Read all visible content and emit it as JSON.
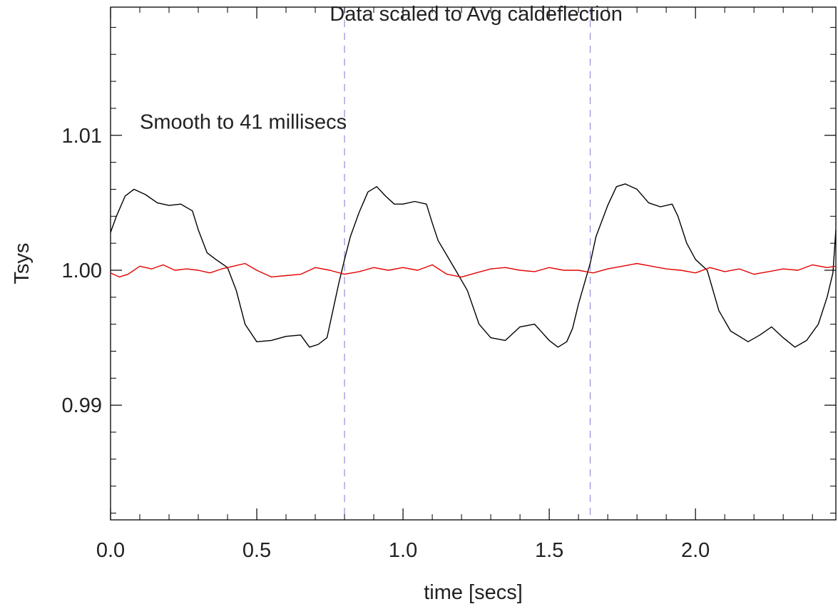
{
  "chart_data": {
    "type": "line",
    "title": "",
    "xlabel": "time [secs]",
    "ylabel": "Tsys",
    "xlim": [
      0.0,
      2.48
    ],
    "ylim": [
      0.9815,
      1.0195
    ],
    "x_ticks": [
      0.0,
      0.5,
      1.0,
      1.5,
      2.0
    ],
    "x_tick_labels": [
      "0.0",
      "0.5",
      "1.0",
      "1.5",
      "2.0"
    ],
    "y_ticks": [
      0.99,
      1.0,
      1.01
    ],
    "y_tick_labels": [
      "0.99",
      "1.00",
      "1.01"
    ],
    "grid": false,
    "annotations": [
      {
        "text": "Data scaled to Avg caldeflection",
        "x": 1.25,
        "y": 1.0185
      },
      {
        "text": "Smooth to 41 millisecs",
        "x": 0.1,
        "y": 1.0105
      }
    ],
    "vertical_lines": [
      {
        "x": 0.8,
        "color": "#9a8ad8",
        "style": "dashed"
      },
      {
        "x": 1.64,
        "color": "#9a8ad8",
        "style": "dashed"
      }
    ],
    "series": [
      {
        "color": "#000000",
        "x": [
          0.0,
          0.02,
          0.05,
          0.08,
          0.12,
          0.16,
          0.2,
          0.24,
          0.28,
          0.3,
          0.33,
          0.36,
          0.4,
          0.43,
          0.46,
          0.5,
          0.55,
          0.6,
          0.65,
          0.68,
          0.71,
          0.74,
          0.76,
          0.78,
          0.8,
          0.82,
          0.85,
          0.88,
          0.91,
          0.94,
          0.97,
          1.0,
          1.04,
          1.08,
          1.1,
          1.12,
          1.15,
          1.18,
          1.22,
          1.26,
          1.3,
          1.35,
          1.4,
          1.45,
          1.5,
          1.53,
          1.56,
          1.58,
          1.6,
          1.62,
          1.64,
          1.66,
          1.7,
          1.73,
          1.76,
          1.8,
          1.84,
          1.88,
          1.92,
          1.94,
          1.97,
          2.0,
          2.04,
          2.08,
          2.12,
          2.18,
          2.22,
          2.26,
          2.3,
          2.34,
          2.38,
          2.42,
          2.45,
          2.47,
          2.48
        ],
        "y": [
          1.0028,
          1.004,
          1.0055,
          1.006,
          1.0056,
          1.005,
          1.0048,
          1.0049,
          1.0044,
          1.003,
          1.0013,
          1.0008,
          1.0002,
          0.9985,
          0.996,
          0.9947,
          0.9948,
          0.9951,
          0.9952,
          0.9943,
          0.9945,
          0.995,
          0.997,
          0.999,
          1.0008,
          1.0025,
          1.0043,
          1.0058,
          1.0062,
          1.0055,
          1.0049,
          1.0049,
          1.0051,
          1.0049,
          1.0035,
          1.0022,
          1.0011,
          1.0,
          0.9985,
          0.996,
          0.995,
          0.9948,
          0.9958,
          0.996,
          0.9948,
          0.9943,
          0.9947,
          0.9957,
          0.9975,
          0.999,
          1.0005,
          1.0025,
          1.0048,
          1.0062,
          1.0064,
          1.006,
          1.005,
          1.0047,
          1.0049,
          1.004,
          1.002,
          1.0008,
          1.0,
          0.997,
          0.9955,
          0.9947,
          0.9952,
          0.9958,
          0.995,
          0.9943,
          0.9948,
          0.996,
          0.998,
          0.9998,
          1.003
        ]
      },
      {
        "color": "#e30000",
        "x": [
          0.0,
          0.03,
          0.06,
          0.1,
          0.14,
          0.18,
          0.22,
          0.26,
          0.3,
          0.34,
          0.38,
          0.42,
          0.46,
          0.5,
          0.55,
          0.6,
          0.65,
          0.7,
          0.75,
          0.8,
          0.85,
          0.9,
          0.95,
          1.0,
          1.05,
          1.1,
          1.15,
          1.2,
          1.25,
          1.3,
          1.35,
          1.4,
          1.45,
          1.5,
          1.55,
          1.6,
          1.65,
          1.7,
          1.75,
          1.8,
          1.85,
          1.9,
          1.95,
          2.0,
          2.05,
          2.1,
          2.15,
          2.2,
          2.25,
          2.3,
          2.35,
          2.4,
          2.45,
          2.48
        ],
        "y": [
          0.9998,
          0.9995,
          0.9997,
          1.0003,
          1.0001,
          1.0004,
          1.0,
          1.0001,
          1.0,
          0.9998,
          1.0001,
          1.0003,
          1.0005,
          1.0,
          0.9995,
          0.9996,
          0.9997,
          1.0002,
          1.0,
          0.9997,
          0.9999,
          1.0002,
          1.0,
          1.0002,
          1.0,
          1.0004,
          0.9997,
          0.9995,
          0.9998,
          1.0001,
          1.0002,
          1.0,
          0.9999,
          1.0002,
          1.0,
          1.0,
          0.9998,
          1.0001,
          1.0003,
          1.0005,
          1.0003,
          1.0001,
          1.0,
          0.9998,
          1.0002,
          0.9999,
          1.0001,
          0.9997,
          0.9999,
          1.0001,
          1.0,
          1.0004,
          1.0002,
          1.0003
        ]
      }
    ]
  }
}
